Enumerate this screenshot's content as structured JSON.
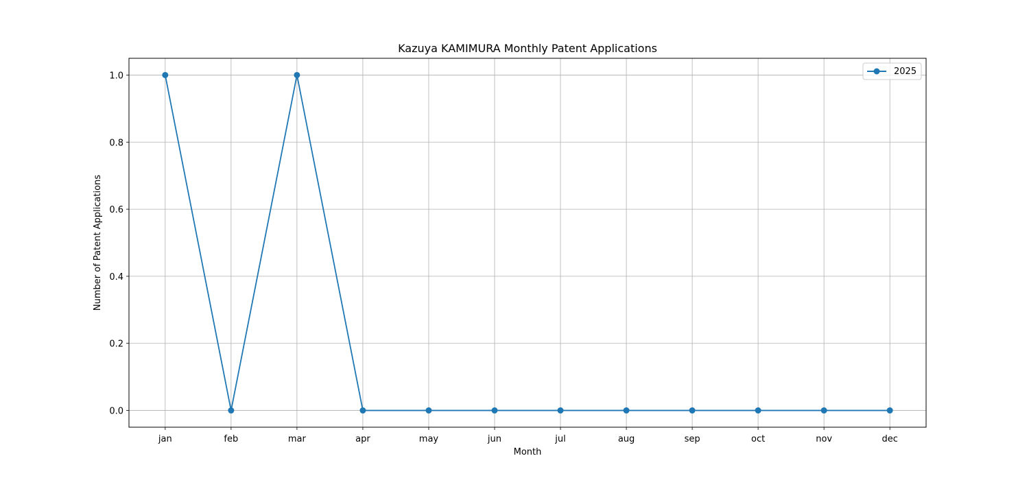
{
  "chart_data": {
    "type": "line",
    "title": "Kazuya KAMIMURA Monthly Patent Applications",
    "xlabel": "Month",
    "ylabel": "Number of Patent Applications",
    "categories": [
      "jan",
      "feb",
      "mar",
      "apr",
      "may",
      "jun",
      "jul",
      "aug",
      "sep",
      "oct",
      "nov",
      "dec"
    ],
    "series": [
      {
        "name": "2025",
        "values": [
          1,
          0,
          1,
          0,
          0,
          0,
          0,
          0,
          0,
          0,
          0,
          0
        ],
        "color": "#1f77b4",
        "marker": "circle"
      }
    ],
    "ylim": [
      -0.05,
      1.05
    ],
    "yticks": [
      0.0,
      0.2,
      0.4,
      0.6,
      0.8,
      1.0
    ],
    "ytick_labels": [
      "0.0",
      "0.2",
      "0.4",
      "0.6",
      "0.8",
      "1.0"
    ],
    "grid": true,
    "legend_position": "top-right"
  }
}
